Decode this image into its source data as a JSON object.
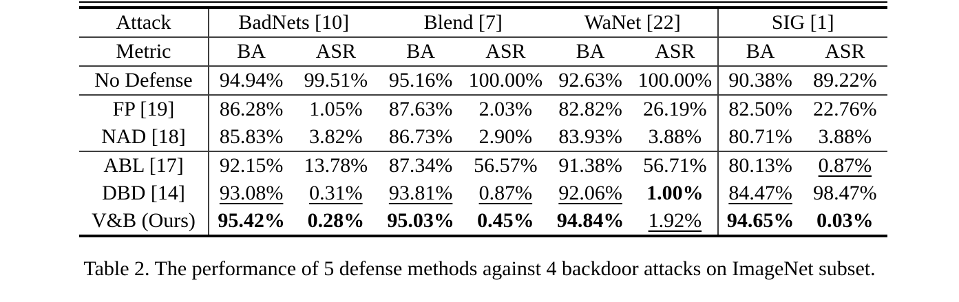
{
  "paper_table": {
    "caption": "Table 2. The performance of 5 defense methods against 4 backdoor attacks on ImageNet subset.",
    "header": {
      "attack": "Attack",
      "metric": "Metric",
      "ba": "BA",
      "asr": "ASR",
      "groups": [
        {
          "label": "BadNets [10]"
        },
        {
          "label": "Blend [7]"
        },
        {
          "label": "WaNet [22]"
        },
        {
          "label": "SIG [1]"
        }
      ]
    },
    "rows": [
      {
        "label": "No Defense",
        "cells": [
          {
            "text": "94.94%",
            "style": "plain"
          },
          {
            "text": "99.51%",
            "style": "plain"
          },
          {
            "text": "95.16%",
            "style": "plain"
          },
          {
            "text": "100.00%",
            "style": "plain"
          },
          {
            "text": "92.63%",
            "style": "plain"
          },
          {
            "text": "100.00%",
            "style": "plain"
          },
          {
            "text": "90.38%",
            "style": "plain"
          },
          {
            "text": "89.22%",
            "style": "plain"
          }
        ]
      },
      {
        "label": "FP [19]",
        "cells": [
          {
            "text": "86.28%",
            "style": "plain"
          },
          {
            "text": "1.05%",
            "style": "plain"
          },
          {
            "text": "87.63%",
            "style": "plain"
          },
          {
            "text": "2.03%",
            "style": "plain"
          },
          {
            "text": "82.82%",
            "style": "plain"
          },
          {
            "text": "26.19%",
            "style": "plain"
          },
          {
            "text": "82.50%",
            "style": "plain"
          },
          {
            "text": "22.76%",
            "style": "plain"
          }
        ]
      },
      {
        "label": "NAD [18]",
        "cells": [
          {
            "text": "85.83%",
            "style": "plain"
          },
          {
            "text": "3.82%",
            "style": "plain"
          },
          {
            "text": "86.73%",
            "style": "plain"
          },
          {
            "text": "2.90%",
            "style": "plain"
          },
          {
            "text": "83.93%",
            "style": "plain"
          },
          {
            "text": "3.88%",
            "style": "plain"
          },
          {
            "text": "80.71%",
            "style": "plain"
          },
          {
            "text": "3.88%",
            "style": "plain"
          }
        ]
      },
      {
        "label": "ABL [17]",
        "cells": [
          {
            "text": "92.15%",
            "style": "plain"
          },
          {
            "text": "13.78%",
            "style": "plain"
          },
          {
            "text": "87.34%",
            "style": "plain"
          },
          {
            "text": "56.57%",
            "style": "plain"
          },
          {
            "text": "91.38%",
            "style": "plain"
          },
          {
            "text": "56.71%",
            "style": "plain"
          },
          {
            "text": "80.13%",
            "style": "plain"
          },
          {
            "text": "0.87%",
            "style": "underline"
          }
        ]
      },
      {
        "label": "DBD [14]",
        "cells": [
          {
            "text": "93.08%",
            "style": "underline"
          },
          {
            "text": "0.31%",
            "style": "underline"
          },
          {
            "text": "93.81%",
            "style": "underline"
          },
          {
            "text": "0.87%",
            "style": "underline"
          },
          {
            "text": "92.06%",
            "style": "underline"
          },
          {
            "text": "1.00%",
            "style": "bold"
          },
          {
            "text": "84.47%",
            "style": "underline"
          },
          {
            "text": "98.47%",
            "style": "plain"
          }
        ]
      },
      {
        "label": "V&B (Ours)",
        "cells": [
          {
            "text": "95.42%",
            "style": "bold"
          },
          {
            "text": "0.28%",
            "style": "bold"
          },
          {
            "text": "95.03%",
            "style": "bold"
          },
          {
            "text": "0.45%",
            "style": "bold"
          },
          {
            "text": "94.84%",
            "style": "bold"
          },
          {
            "text": "1.92%",
            "style": "underline"
          },
          {
            "text": "94.65%",
            "style": "bold"
          },
          {
            "text": "0.03%",
            "style": "bold"
          }
        ]
      }
    ]
  }
}
